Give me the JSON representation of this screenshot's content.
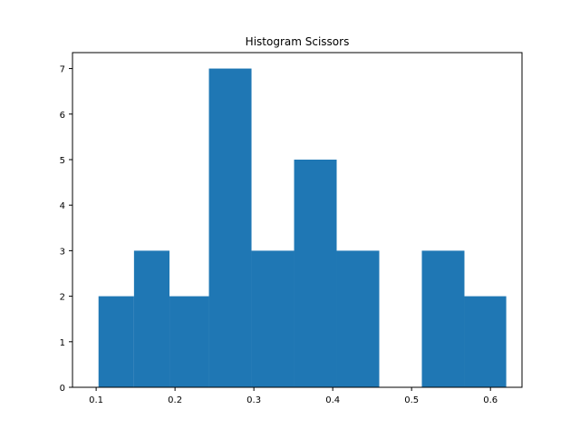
{
  "chart_data": {
    "type": "bar",
    "subtype": "histogram",
    "title": "Histogram Scissors",
    "xlabel": "",
    "ylabel": "",
    "bins": [
      {
        "x0": 0.103,
        "x1": 0.148,
        "count": 2
      },
      {
        "x0": 0.148,
        "x1": 0.193,
        "count": 3
      },
      {
        "x0": 0.193,
        "x1": 0.243,
        "count": 2
      },
      {
        "x0": 0.243,
        "x1": 0.297,
        "count": 7
      },
      {
        "x0": 0.297,
        "x1": 0.351,
        "count": 3
      },
      {
        "x0": 0.351,
        "x1": 0.405,
        "count": 5
      },
      {
        "x0": 0.405,
        "x1": 0.459,
        "count": 3
      },
      {
        "x0": 0.459,
        "x1": 0.513,
        "count": 0
      },
      {
        "x0": 0.513,
        "x1": 0.567,
        "count": 3
      },
      {
        "x0": 0.567,
        "x1": 0.62,
        "count": 2
      }
    ],
    "xlim": [
      0.07,
      0.64
    ],
    "ylim": [
      0,
      7.35
    ],
    "xticks": [
      "0.1",
      "0.2",
      "0.3",
      "0.4",
      "0.5",
      "0.6"
    ],
    "yticks": [
      "0",
      "1",
      "2",
      "3",
      "4",
      "5",
      "6",
      "7"
    ],
    "grid": false,
    "legend": "none",
    "bar_color": "#1f77b4"
  }
}
